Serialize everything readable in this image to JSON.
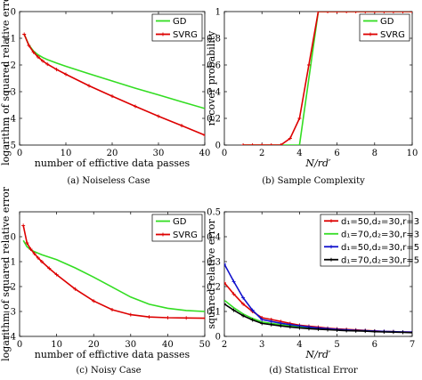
{
  "chart_data": [
    {
      "type": "line",
      "caption": "(a) Noiseless Case",
      "xlabel": "number of effictive data passes",
      "ylabel": "logarithm of squared relative error",
      "xlim": [
        0,
        40
      ],
      "ylim": [
        -5,
        0
      ],
      "xticks": [
        0,
        10,
        20,
        30,
        40
      ],
      "yticks": [
        0,
        -1,
        -2,
        -3,
        -4,
        -5
      ],
      "grid": false,
      "legend_position": "top-right",
      "series": [
        {
          "name": "GD",
          "color": "#33dd22",
          "marker": "none",
          "x": [
            1,
            2,
            3,
            4,
            5,
            6,
            8,
            10,
            15,
            20,
            25,
            30,
            35,
            40
          ],
          "y": [
            -0.85,
            -1.25,
            -1.48,
            -1.62,
            -1.72,
            -1.8,
            -1.93,
            -2.05,
            -2.33,
            -2.6,
            -2.87,
            -3.12,
            -3.38,
            -3.63
          ]
        },
        {
          "name": "SVRG",
          "color": "#dd0000",
          "marker": "plus",
          "x": [
            1,
            2,
            3,
            4,
            5,
            6,
            8,
            10,
            15,
            20,
            25,
            30,
            35,
            40
          ],
          "y": [
            -0.85,
            -1.27,
            -1.52,
            -1.7,
            -1.85,
            -1.97,
            -2.17,
            -2.35,
            -2.78,
            -3.17,
            -3.55,
            -3.92,
            -4.27,
            -4.63
          ]
        }
      ]
    },
    {
      "type": "line",
      "caption": "(b) Sample Complexity",
      "xlabel": "N/rd′",
      "ylabel": "recover probability",
      "xlim": [
        0,
        10
      ],
      "ylim": [
        0,
        1
      ],
      "xticks": [
        0,
        2,
        4,
        6,
        8,
        10
      ],
      "yticks": [
        0,
        0.2,
        0.4,
        0.6,
        0.8,
        1
      ],
      "grid": false,
      "legend_position": "top-right",
      "series": [
        {
          "name": "GD",
          "color": "#33dd22",
          "marker": "none",
          "x": [
            1,
            2,
            3,
            4,
            5,
            6,
            7,
            8,
            9,
            10
          ],
          "y": [
            0,
            0,
            0,
            0,
            1,
            1,
            1,
            1,
            1,
            1
          ]
        },
        {
          "name": "SVRG",
          "color": "#dd0000",
          "marker": "plus",
          "x": [
            1,
            1.5,
            2,
            2.5,
            3,
            3.5,
            4,
            4.5,
            5,
            5.5,
            6,
            6.5,
            7,
            7.5,
            8,
            8.5,
            9,
            9.5,
            10
          ],
          "y": [
            0,
            0,
            0,
            0,
            0,
            0.05,
            0.2,
            0.6,
            1,
            1,
            1,
            1,
            1,
            1,
            1,
            1,
            1,
            1,
            1
          ]
        }
      ]
    },
    {
      "type": "line",
      "caption": "(c) Noisy Case",
      "xlabel": "number of effictive data passes",
      "ylabel": "logarithm of squared relative error",
      "xlim": [
        0,
        50
      ],
      "ylim": [
        -4,
        1
      ],
      "xticks": [
        0,
        10,
        20,
        30,
        40,
        50
      ],
      "yticks": [
        0,
        -1,
        -2,
        -3,
        -4
      ],
      "grid": false,
      "legend_position": "top-right",
      "series": [
        {
          "name": "GD",
          "color": "#33dd22",
          "marker": "none",
          "x": [
            1,
            2,
            3,
            4,
            5,
            6,
            8,
            10,
            15,
            20,
            25,
            30,
            35,
            40,
            45,
            50
          ],
          "y": [
            -0.15,
            -0.4,
            -0.52,
            -0.6,
            -0.66,
            -0.72,
            -0.82,
            -0.92,
            -1.25,
            -1.62,
            -2.02,
            -2.42,
            -2.71,
            -2.87,
            -2.96,
            -3.0
          ]
        },
        {
          "name": "SVRG",
          "color": "#dd0000",
          "marker": "plus",
          "x": [
            1,
            2,
            3,
            4,
            5,
            6,
            8,
            10,
            15,
            20,
            25,
            30,
            35,
            40,
            45,
            50
          ],
          "y": [
            0.45,
            -0.25,
            -0.5,
            -0.68,
            -0.85,
            -1.0,
            -1.27,
            -1.52,
            -2.1,
            -2.58,
            -2.93,
            -3.13,
            -3.22,
            -3.25,
            -3.26,
            -3.27
          ]
        }
      ]
    },
    {
      "type": "line",
      "caption": "(d) Statistical Error",
      "xlabel": "N/rd′",
      "ylabel": "squared relative error",
      "xlim": [
        2,
        7
      ],
      "ylim": [
        0,
        0.5
      ],
      "xticks": [
        2,
        3,
        4,
        5,
        6,
        7
      ],
      "yticks": [
        0,
        0.1,
        0.2,
        0.3,
        0.4,
        0.5
      ],
      "grid": false,
      "legend_position": "top-right",
      "series": [
        {
          "name": "d₁=50,d₂=30,r=3",
          "color": "#dd0000",
          "marker": "plus",
          "x": [
            2,
            2.25,
            2.5,
            2.75,
            3,
            3.25,
            3.5,
            3.75,
            4,
            4.25,
            4.5,
            4.75,
            5,
            5.25,
            5.5,
            5.75,
            6,
            6.25,
            6.5,
            6.75,
            7
          ],
          "y": [
            0.215,
            0.17,
            0.13,
            0.1,
            0.075,
            0.068,
            0.06,
            0.052,
            0.045,
            0.041,
            0.037,
            0.033,
            0.03,
            0.028,
            0.026,
            0.024,
            0.022,
            0.02,
            0.019,
            0.018,
            0.017
          ]
        },
        {
          "name": "d₁=70,d₂=30,r=3",
          "color": "#33dd22",
          "marker": "none",
          "x": [
            2,
            2.25,
            2.5,
            2.75,
            3,
            3.25,
            3.5,
            3.75,
            4,
            4.25,
            4.5,
            4.75,
            5,
            5.25,
            5.5,
            5.75,
            6,
            6.25,
            6.5,
            6.75,
            7
          ],
          "y": [
            0.145,
            0.115,
            0.09,
            0.072,
            0.058,
            0.052,
            0.047,
            0.042,
            0.037,
            0.034,
            0.031,
            0.029,
            0.026,
            0.025,
            0.023,
            0.022,
            0.02,
            0.019,
            0.018,
            0.017,
            0.016
          ]
        },
        {
          "name": "d₁=50,d₂=30,r=5",
          "color": "#1111cc",
          "marker": "plus",
          "x": [
            2,
            2.25,
            2.5,
            2.75,
            3,
            3.25,
            3.5,
            3.75,
            4,
            4.25,
            4.5,
            4.75,
            5,
            5.25,
            5.5,
            5.75,
            6,
            6.25,
            6.5,
            6.75,
            7
          ],
          "y": [
            0.29,
            0.22,
            0.155,
            0.105,
            0.068,
            0.06,
            0.053,
            0.047,
            0.042,
            0.038,
            0.034,
            0.031,
            0.028,
            0.026,
            0.024,
            0.023,
            0.021,
            0.02,
            0.019,
            0.018,
            0.017
          ]
        },
        {
          "name": "d₁=70,d₂=30,r=5",
          "color": "#000000",
          "marker": "plus",
          "x": [
            2,
            2.25,
            2.5,
            2.75,
            3,
            3.25,
            3.5,
            3.75,
            4,
            4.25,
            4.5,
            4.75,
            5,
            5.25,
            5.5,
            5.75,
            6,
            6.25,
            6.5,
            6.75,
            7
          ],
          "y": [
            0.13,
            0.105,
            0.083,
            0.066,
            0.052,
            0.047,
            0.042,
            0.038,
            0.034,
            0.031,
            0.029,
            0.027,
            0.025,
            0.023,
            0.022,
            0.021,
            0.019,
            0.018,
            0.017,
            0.016,
            0.015
          ]
        }
      ]
    }
  ]
}
